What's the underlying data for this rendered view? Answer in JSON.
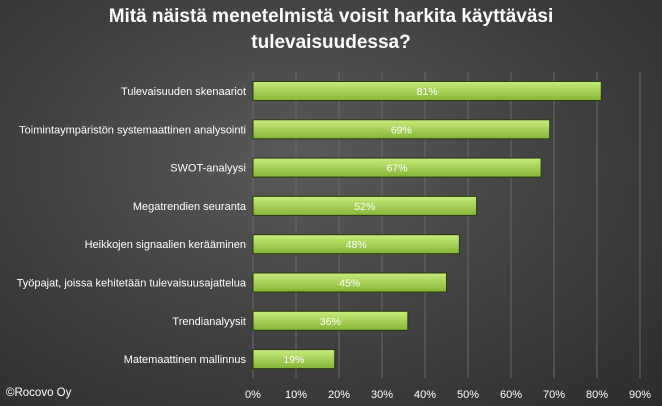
{
  "title_line1": "Mitä näistä menetelmistä voisit harkita käyttäväsi",
  "title_line2": "tulevaisuudessa?",
  "copyright": "©Rocovo Oy",
  "colors": {
    "bar_top": "#c8ec7c",
    "bar_bottom": "#84b535",
    "bar_edge": "#2a3a12",
    "text": "#ffffff",
    "grid": "#6a6a6a"
  },
  "chart_data": {
    "type": "bar",
    "orientation": "horizontal",
    "title": "Mitä näistä menetelmistä voisit harkita käyttäväsi tulevaisuudessa?",
    "categories": [
      "Tulevaisuuden skenaariot",
      "Toimintaympäristön systemaattinen analysointi",
      "SWOT-analyysi",
      "Megatrendien seuranta",
      "Heikkojen signaalien kerääminen",
      "Työpajat, joissa kehitetään tulevaisuusajattelua",
      "Trendianalyysit",
      "Matemaattinen mallinnus"
    ],
    "values": [
      81,
      69,
      67,
      52,
      48,
      45,
      36,
      19
    ],
    "value_labels": [
      "81%",
      "69%",
      "67%",
      "52%",
      "48%",
      "45%",
      "36%",
      "19%"
    ],
    "xlim": [
      0,
      90
    ],
    "xticks": [
      "0%",
      "10%",
      "20%",
      "30%",
      "40%",
      "50%",
      "60%",
      "70%",
      "80%",
      "90%"
    ],
    "grid": true,
    "legend": "none"
  }
}
